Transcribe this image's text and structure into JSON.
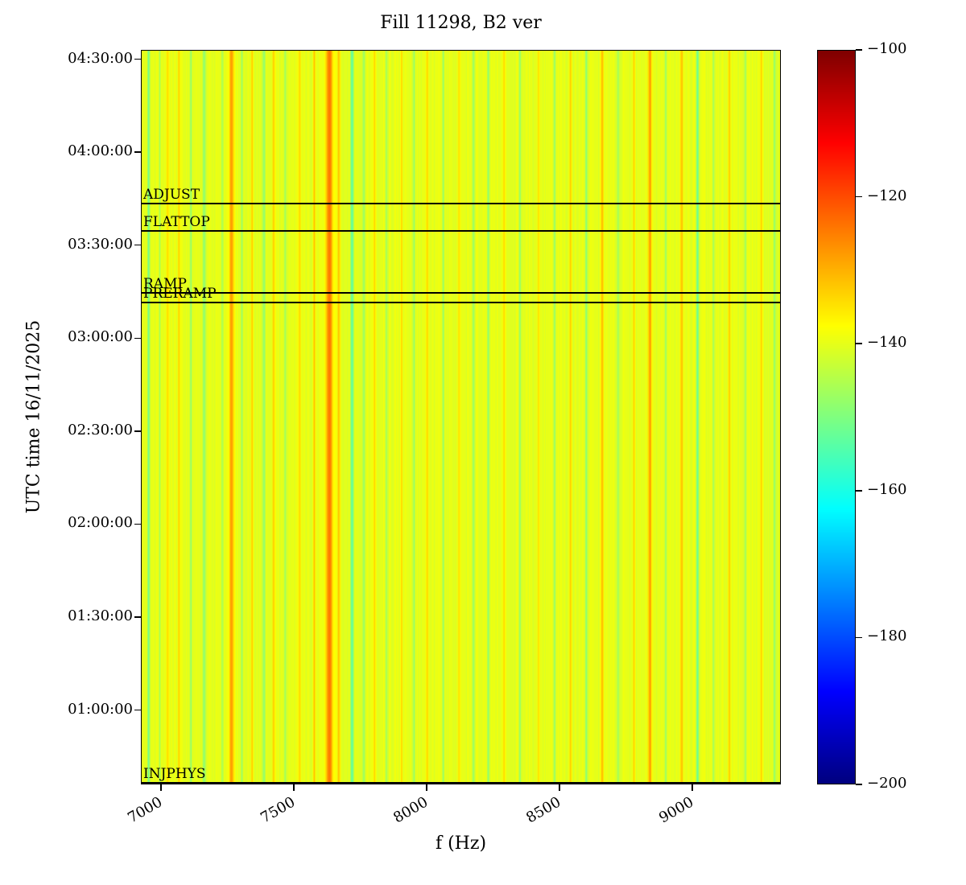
{
  "chart_data": {
    "type": "heatmap",
    "title": "Fill 11298, B2 ver",
    "xlabel": "f (Hz)",
    "ylabel": "UTC time 16/11/2025",
    "colormap": "jet",
    "value_range_db": [
      -200,
      -100
    ],
    "x_range_hz": [
      6924,
      9333
    ],
    "x_ticks": [
      7000,
      7500,
      8000,
      8500,
      9000
    ],
    "time_start": "00:36",
    "time_end": "04:33",
    "y_ticks": [
      "04:30:00",
      "04:00:00",
      "03:30:00",
      "03:00:00",
      "02:30:00",
      "02:00:00",
      "01:30:00",
      "01:00:00"
    ],
    "colorbar_ticks": [
      -100,
      -120,
      -140,
      -160,
      -180,
      -200
    ],
    "base_value_db": -140,
    "noise_amplitude_db": 1.4,
    "grid": false,
    "legend": "none",
    "annotations": [
      {
        "label": "ADJUST",
        "time": "03:44"
      },
      {
        "label": "FLATTOP",
        "time": "03:35"
      },
      {
        "label": "RAMP",
        "time": "03:15"
      },
      {
        "label": "PRERAMP",
        "time": "03:12"
      },
      {
        "label": "INJPHYS",
        "time": "00:37"
      }
    ],
    "stripes": [
      {
        "f": 6950,
        "value": -152,
        "width": 6
      },
      {
        "f": 6992,
        "value": -146,
        "width": 5
      },
      {
        "f": 7022,
        "value": -134,
        "width": 8
      },
      {
        "f": 7065,
        "value": -133,
        "width": 6
      },
      {
        "f": 7110,
        "value": -148,
        "width": 6
      },
      {
        "f": 7160,
        "value": -150,
        "width": 7
      },
      {
        "f": 7228,
        "value": -146,
        "width": 5
      },
      {
        "f": 7263,
        "value": -128,
        "width": 12
      },
      {
        "f": 7302,
        "value": -148,
        "width": 6
      },
      {
        "f": 7340,
        "value": -132,
        "width": 6
      },
      {
        "f": 7385,
        "value": -149,
        "width": 7
      },
      {
        "f": 7422,
        "value": -132,
        "width": 6
      },
      {
        "f": 7465,
        "value": -147,
        "width": 6
      },
      {
        "f": 7520,
        "value": -134,
        "width": 6
      },
      {
        "f": 7575,
        "value": -131,
        "width": 6
      },
      {
        "f": 7632,
        "value": -124,
        "width": 18
      },
      {
        "f": 7668,
        "value": -132,
        "width": 8
      },
      {
        "f": 7718,
        "value": -154,
        "width": 8
      },
      {
        "f": 7762,
        "value": -148,
        "width": 6
      },
      {
        "f": 7802,
        "value": -133,
        "width": 6
      },
      {
        "f": 7848,
        "value": -147,
        "width": 6
      },
      {
        "f": 7905,
        "value": -132,
        "width": 5
      },
      {
        "f": 7952,
        "value": -147,
        "width": 6
      },
      {
        "f": 8002,
        "value": -133,
        "width": 6
      },
      {
        "f": 8062,
        "value": -148,
        "width": 6
      },
      {
        "f": 8122,
        "value": -134,
        "width": 5
      },
      {
        "f": 8176,
        "value": -148,
        "width": 6
      },
      {
        "f": 8232,
        "value": -149,
        "width": 6
      },
      {
        "f": 8292,
        "value": -133,
        "width": 6
      },
      {
        "f": 8352,
        "value": -148,
        "width": 6
      },
      {
        "f": 8422,
        "value": -134,
        "width": 6
      },
      {
        "f": 8482,
        "value": -148,
        "width": 6
      },
      {
        "f": 8542,
        "value": -133,
        "width": 6
      },
      {
        "f": 8602,
        "value": -149,
        "width": 6
      },
      {
        "f": 8662,
        "value": -131,
        "width": 7
      },
      {
        "f": 8722,
        "value": -147,
        "width": 6
      },
      {
        "f": 8782,
        "value": -133,
        "width": 6
      },
      {
        "f": 8842,
        "value": -128,
        "width": 10
      },
      {
        "f": 8902,
        "value": -147,
        "width": 6
      },
      {
        "f": 8962,
        "value": -131,
        "width": 7
      },
      {
        "f": 9022,
        "value": -152,
        "width": 7
      },
      {
        "f": 9082,
        "value": -147,
        "width": 6
      },
      {
        "f": 9142,
        "value": -132,
        "width": 6
      },
      {
        "f": 9202,
        "value": -147,
        "width": 6
      },
      {
        "f": 9262,
        "value": -132,
        "width": 6
      },
      {
        "f": 9312,
        "value": -148,
        "width": 6
      }
    ]
  }
}
